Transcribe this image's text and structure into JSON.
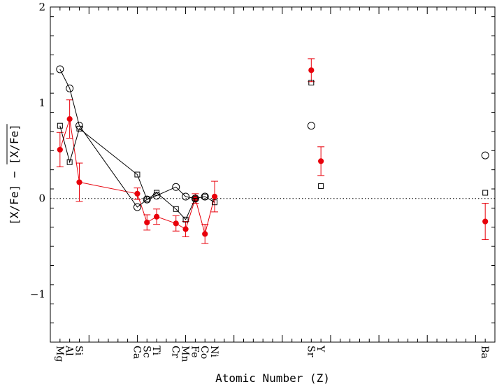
{
  "chart_data": {
    "type": "scatter",
    "xlabel": "Atomic Number (Z)",
    "ylabel": "[X/Fe] − [X/Fe]",
    "ylabel_parts": {
      "left": "[X/Fe]",
      "sep": "−",
      "right": "[X/Fe]",
      "overline": true
    },
    "xlim": [
      11,
      57
    ],
    "ylim": [
      -1.5,
      2
    ],
    "y_ticks": [
      {
        "value": 2,
        "label": "2"
      },
      {
        "value": 1,
        "label": "1"
      },
      {
        "value": 0,
        "label": "0"
      },
      {
        "value": -1,
        "label": "−1"
      }
    ],
    "reference_line": {
      "y": 0,
      "style": "dotted"
    },
    "elements": [
      {
        "z": 12,
        "symbol": "Mg"
      },
      {
        "z": 13,
        "symbol": "Al"
      },
      {
        "z": 14,
        "symbol": "Si"
      },
      {
        "z": 20,
        "symbol": "Ca"
      },
      {
        "z": 21,
        "symbol": "Sc"
      },
      {
        "z": 22,
        "symbol": "Ti"
      },
      {
        "z": 24,
        "symbol": "Cr"
      },
      {
        "z": 25,
        "symbol": "Mn"
      },
      {
        "z": 26,
        "symbol": "Fe"
      },
      {
        "z": 27,
        "symbol": "Co"
      },
      {
        "z": 28,
        "symbol": "Ni"
      },
      {
        "z": 38,
        "symbol": "Sr"
      },
      {
        "z": 39,
        "symbol": "Y"
      },
      {
        "z": 56,
        "symbol": "Ba"
      }
    ],
    "series": [
      {
        "marker": "filled-circle",
        "color": "#e8000b",
        "line_color": "#e8000b",
        "connected_through_z": 28,
        "points": [
          {
            "x": 12,
            "y": 0.51,
            "err": 0.18
          },
          {
            "x": 13,
            "y": 0.83,
            "err": 0.2
          },
          {
            "x": 14,
            "y": 0.17,
            "err": 0.2
          },
          {
            "x": 20,
            "y": 0.05,
            "err": 0.06
          },
          {
            "x": 21,
            "y": -0.25,
            "err": 0.08
          },
          {
            "x": 22,
            "y": -0.19,
            "err": 0.08
          },
          {
            "x": 24,
            "y": -0.26,
            "err": 0.08
          },
          {
            "x": 25,
            "y": -0.32,
            "err": 0.08
          },
          {
            "x": 26,
            "y": 0.0,
            "err": 0.05
          },
          {
            "x": 27,
            "y": -0.37,
            "err": 0.1
          },
          {
            "x": 28,
            "y": 0.02,
            "err": 0.16
          },
          {
            "x": 38,
            "y": 1.34,
            "err": 0.12
          },
          {
            "x": 39,
            "y": 0.39,
            "err": 0.15
          },
          {
            "x": 56,
            "y": -0.24,
            "err": 0.19
          }
        ]
      },
      {
        "marker": "open-circle",
        "color": "#000000",
        "line_color": "#000000",
        "connected_through_z": 26,
        "points": [
          {
            "x": 12,
            "y": 1.35
          },
          {
            "x": 13,
            "y": 1.15
          },
          {
            "x": 14,
            "y": 0.76
          },
          {
            "x": 20,
            "y": -0.09
          },
          {
            "x": 21,
            "y": -0.01
          },
          {
            "x": 22,
            "y": 0.03
          },
          {
            "x": 24,
            "y": 0.12
          },
          {
            "x": 25,
            "y": 0.02
          },
          {
            "x": 26,
            "y": 0.0
          },
          {
            "x": 27,
            "y": 0.02
          },
          {
            "x": 38,
            "y": 0.76
          },
          {
            "x": 56,
            "y": 0.45
          }
        ]
      },
      {
        "marker": "open-square",
        "color": "#000000",
        "line_color": "#000000",
        "connected_through_z": 28,
        "points": [
          {
            "x": 12,
            "y": 0.76
          },
          {
            "x": 13,
            "y": 0.38
          },
          {
            "x": 14,
            "y": 0.73
          },
          {
            "x": 20,
            "y": 0.25
          },
          {
            "x": 21,
            "y": -0.01
          },
          {
            "x": 22,
            "y": 0.06
          },
          {
            "x": 24,
            "y": -0.11
          },
          {
            "x": 25,
            "y": -0.22
          },
          {
            "x": 26,
            "y": 0.0
          },
          {
            "x": 27,
            "y": 0.02
          },
          {
            "x": 28,
            "y": -0.04
          },
          {
            "x": 38,
            "y": 1.21
          },
          {
            "x": 39,
            "y": 0.13
          },
          {
            "x": 56,
            "y": 0.06
          }
        ]
      }
    ],
    "grid": false,
    "legend": "none"
  }
}
